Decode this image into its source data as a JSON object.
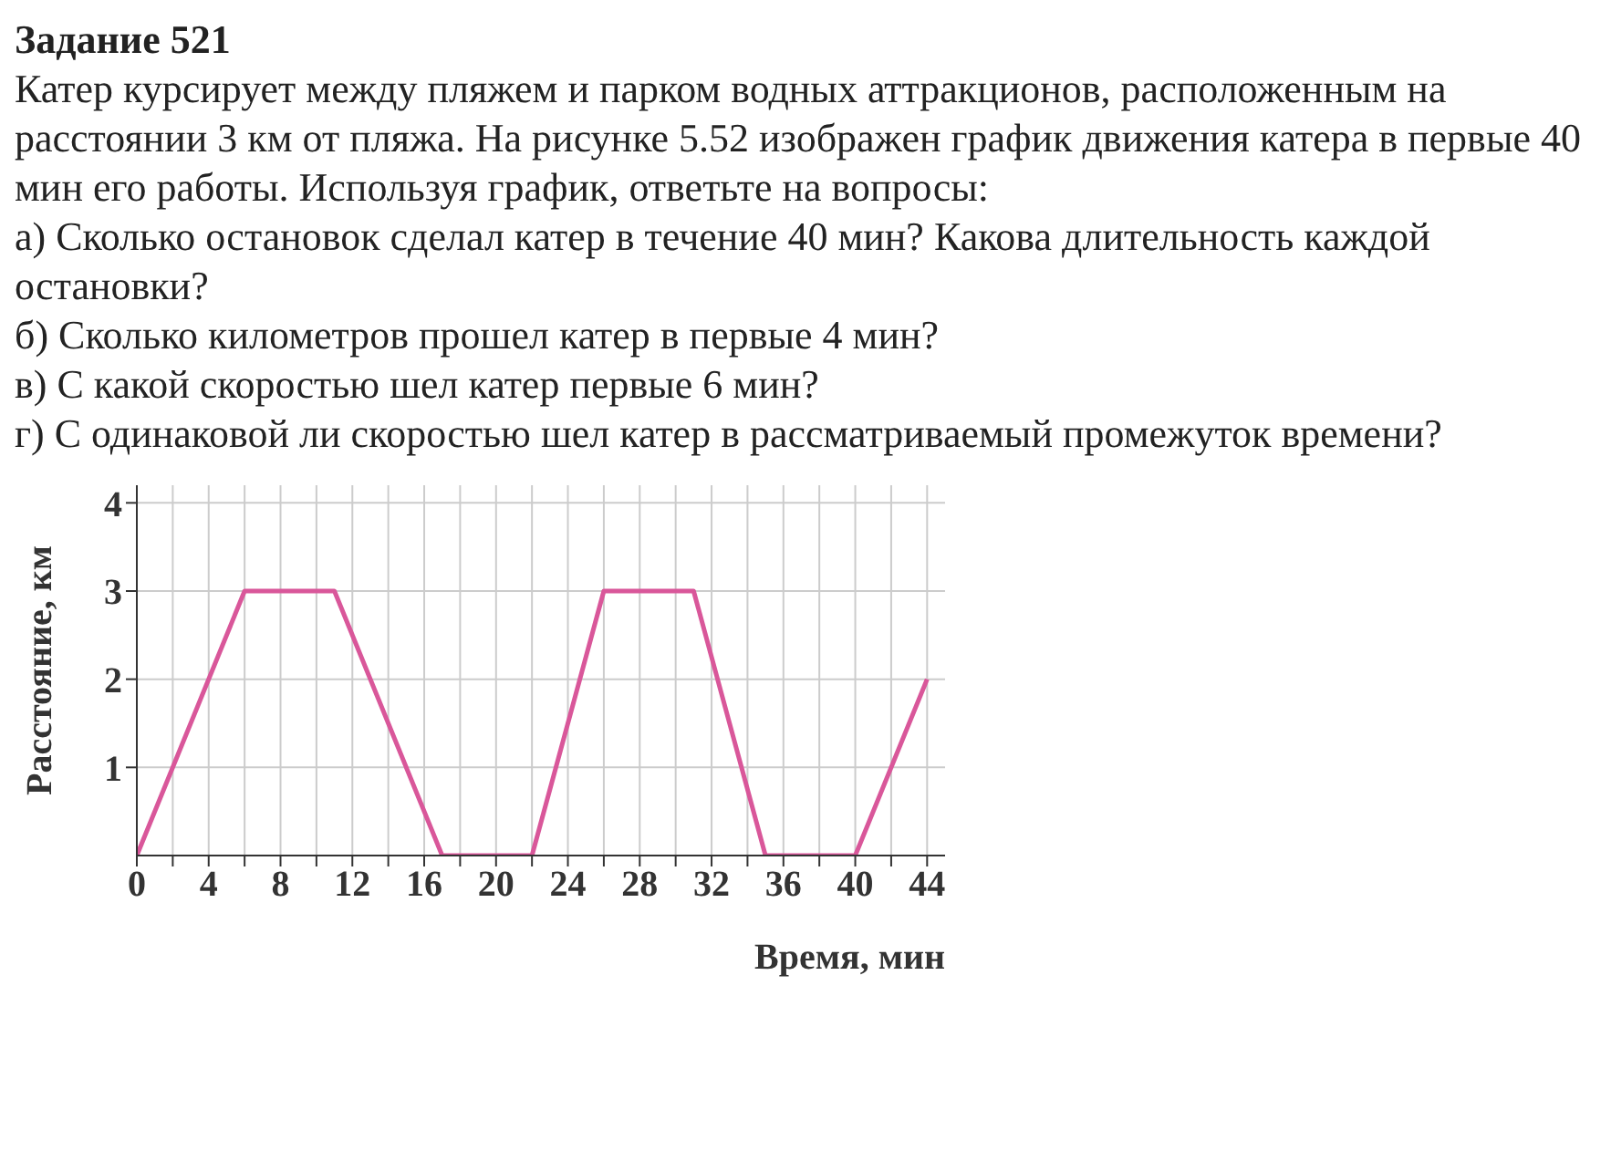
{
  "chart_data": {
    "type": "line",
    "title": "Задание 521",
    "subtitle": "Катер курсирует между пляжем и парком водных аттракционов, расположенным на расстоянии 3 км от пляжа. На рисунке 5.52 изображен график движения катера в первые 40 мин его работы. Используя график, ответьте на вопросы:",
    "annotations": [
      "а) Сколько остановок сделал катер в течение 40 мин? Какова длительность каждой остановки?",
      "б) Сколько километров прошел катер в первые 4 мин?",
      "в) С какой скоростью шел катер первые 6 мин?",
      "г) С одинаковой ли скоростью шел катер в рассматриваемый промежуток времени?"
    ],
    "xlabel": "Время, мин",
    "ylabel": "Расстояние, км",
    "x": [
      0,
      6,
      11,
      17,
      22,
      26,
      31,
      35,
      40,
      44
    ],
    "series": [
      {
        "color": "#d9579a",
        "values": [
          0,
          3,
          3,
          0,
          0,
          3,
          3,
          0,
          0,
          2
        ]
      }
    ],
    "xlim": [
      0,
      45
    ],
    "ylim": [
      0,
      4.2
    ],
    "xticks": [
      0,
      {
        "value": 2,
        "label": null
      },
      4,
      {
        "value": 6,
        "label": null
      },
      8,
      {
        "value": 10,
        "label": null
      },
      12,
      {
        "value": 14,
        "label": null
      },
      16,
      {
        "value": 18,
        "label": null
      },
      20,
      {
        "value": 22,
        "label": null
      },
      24,
      {
        "value": 26,
        "label": null
      },
      28,
      {
        "value": 30,
        "label": null
      },
      32,
      {
        "value": 34,
        "label": null
      },
      36,
      {
        "value": 38,
        "label": null
      },
      40,
      {
        "value": 42,
        "label": null
      },
      44
    ],
    "yticks": [
      1,
      2,
      3,
      4
    ],
    "grid": true,
    "legend": false,
    "marker": "none",
    "line_style": "solid"
  }
}
